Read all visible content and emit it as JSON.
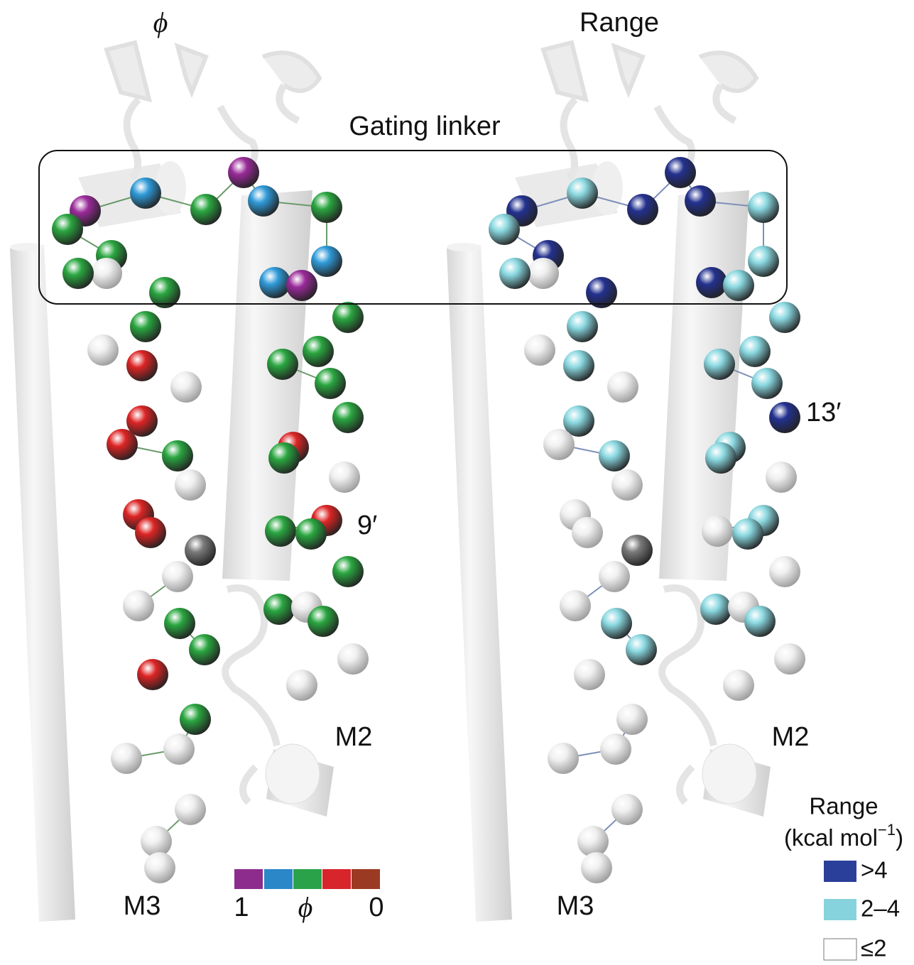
{
  "panels": [
    {
      "title": "ϕ",
      "labels": [
        "9′",
        "M2",
        "M3"
      ]
    },
    {
      "title": "Range",
      "labels": [
        "13′",
        "M2",
        "M3"
      ]
    }
  ],
  "gating_linker": "Gating linker",
  "colorbar": {
    "left": "1",
    "symbol": "ϕ",
    "right": "0"
  },
  "legend": {
    "title": "Range",
    "unit": "(kcal mol",
    "unit_exp": "−1",
    "unit_close": ")",
    "items": [
      ">4",
      "2–4",
      "≤2"
    ]
  }
}
